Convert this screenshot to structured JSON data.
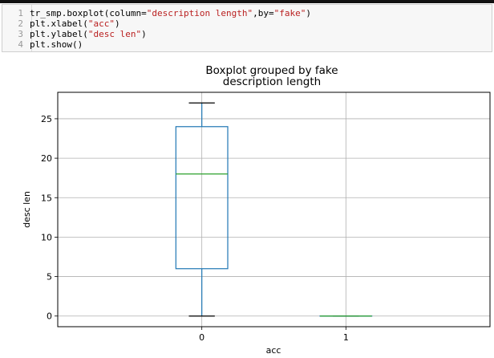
{
  "code_cell": {
    "lines": [
      {
        "num": "1",
        "pre": "tr_smp.boxplot(column=",
        "s1": "\"description length\"",
        "mid": ",by=",
        "s2": "\"fake\"",
        "post": ")"
      },
      {
        "num": "2",
        "pre": "plt.xlabel(",
        "s1": "\"acc\"",
        "mid": "",
        "s2": "",
        "post": ")"
      },
      {
        "num": "3",
        "pre": "plt.ylabel(",
        "s1": "\"desc len\"",
        "mid": "",
        "s2": "",
        "post": ")"
      },
      {
        "num": "4",
        "pre": "plt.show()",
        "s1": "",
        "mid": "",
        "s2": "",
        "post": ""
      }
    ]
  },
  "chart_data": {
    "type": "boxplot",
    "title": "Boxplot grouped by fake",
    "subtitle": "description length",
    "xlabel": "acc",
    "ylabel": "desc len",
    "categories": [
      "0",
      "1"
    ],
    "yticks": [
      0,
      5,
      10,
      15,
      20,
      25
    ],
    "ylim": [
      -1.35,
      28.35
    ],
    "grid": true,
    "boxes": [
      {
        "category": "0",
        "whisker_low": 0,
        "q1": 6,
        "median": 18,
        "q3": 24,
        "whisker_high": 27
      },
      {
        "category": "1",
        "whisker_low": 0,
        "q1": 0,
        "median": 0,
        "q3": 0,
        "whisker_high": 0
      }
    ],
    "colors": {
      "box": "#1f77b4",
      "median": "#2ca02c",
      "whisker": "#1f77b4",
      "grid": "#b0b0b0"
    }
  }
}
